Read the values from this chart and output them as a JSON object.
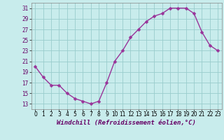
{
  "x": [
    0,
    1,
    2,
    3,
    4,
    5,
    6,
    7,
    8,
    9,
    10,
    11,
    12,
    13,
    14,
    15,
    16,
    17,
    18,
    19,
    20,
    21,
    22,
    23
  ],
  "y": [
    20,
    18,
    16.5,
    16.5,
    15,
    14,
    13.5,
    13,
    13.5,
    17,
    21,
    23,
    25.5,
    27,
    28.5,
    29.5,
    30,
    31,
    31,
    31,
    30,
    26.5,
    24,
    23
  ],
  "line_color": "#993399",
  "marker_color": "#993399",
  "bg_color": "#c8ecec",
  "grid_color": "#99cccc",
  "xlabel": "Windchill (Refroidissement éolien,°C)",
  "ylim": [
    12,
    32
  ],
  "xlim": [
    -0.5,
    23.5
  ],
  "yticks": [
    13,
    15,
    17,
    19,
    21,
    23,
    25,
    27,
    29,
    31
  ],
  "xticks": [
    0,
    1,
    2,
    3,
    4,
    5,
    6,
    7,
    8,
    9,
    10,
    11,
    12,
    13,
    14,
    15,
    16,
    17,
    18,
    19,
    20,
    21,
    22,
    23
  ],
  "xlabel_fontsize": 6.5,
  "tick_fontsize": 5.5,
  "line_width": 1.0,
  "marker_size": 2.5
}
